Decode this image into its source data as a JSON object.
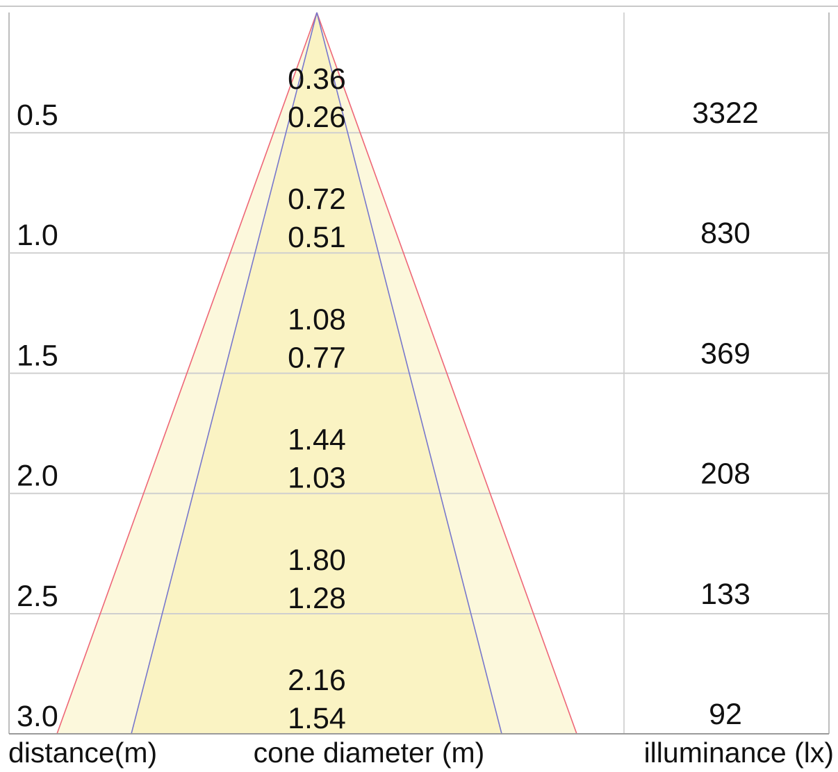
{
  "labels": {
    "distance": "distance(m)",
    "cone": "cone diameter (m)",
    "illuminance": "illuminance (lx)"
  },
  "colors": {
    "outer_fill": "#fcf8dc",
    "inner_fill": "#faf3c3",
    "outer_edge": "#ee6677",
    "inner_edge": "#7777cc",
    "grid": "#cfcfcf"
  },
  "rows": [
    {
      "distance": "0.5",
      "outer": "0.36",
      "inner": "0.26",
      "lux": "3322"
    },
    {
      "distance": "1.0",
      "outer": "0.72",
      "inner": "0.51",
      "lux": "830"
    },
    {
      "distance": "1.5",
      "outer": "1.08",
      "inner": "0.77",
      "lux": "369"
    },
    {
      "distance": "2.0",
      "outer": "1.44",
      "inner": "1.03",
      "lux": "208"
    },
    {
      "distance": "2.5",
      "outer": "1.80",
      "inner": "1.28",
      "lux": "133"
    },
    {
      "distance": "3.0",
      "outer": "2.16",
      "inner": "1.54",
      "lux": "92"
    }
  ],
  "chart_data": {
    "type": "table",
    "columns": [
      "distance(m)",
      "cone diameter (m)",
      "cone diameter (m)",
      "illuminance (lx)"
    ],
    "x": [
      0.5,
      1.0,
      1.5,
      2.0,
      2.5,
      3.0
    ],
    "series": [
      {
        "values": [
          0.36,
          0.72,
          1.08,
          1.44,
          1.8,
          2.16
        ]
      },
      {
        "values": [
          0.26,
          0.51,
          0.77,
          1.03,
          1.28,
          1.54
        ]
      },
      {
        "values": [
          3322,
          830,
          369,
          208,
          133,
          92
        ]
      }
    ]
  }
}
